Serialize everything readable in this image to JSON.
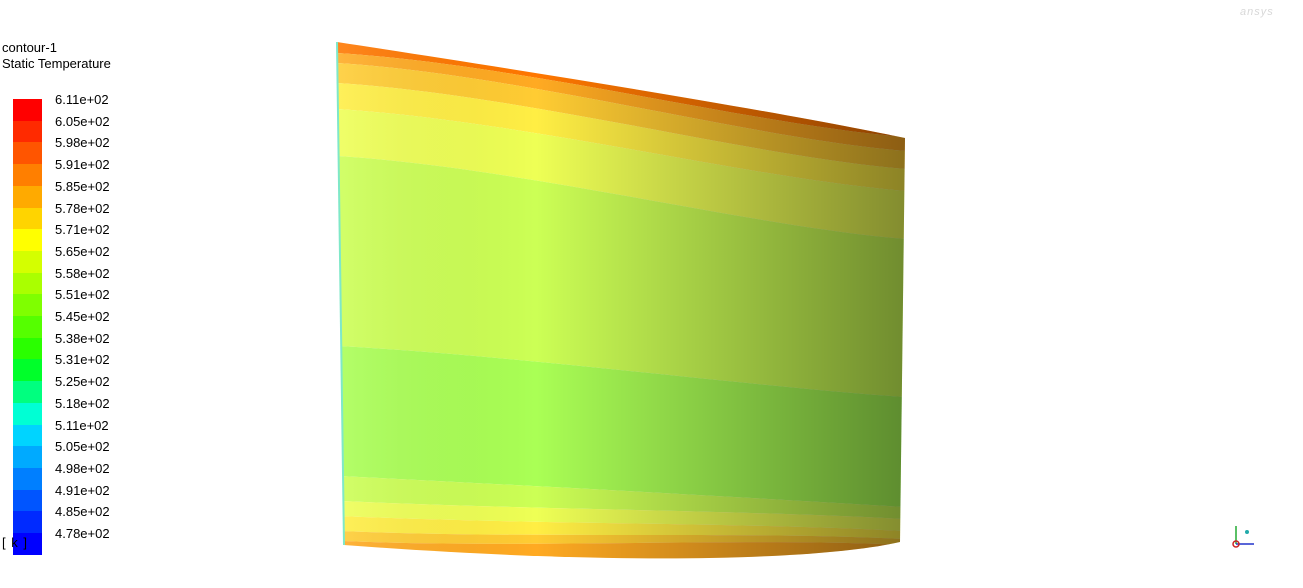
{
  "title": {
    "line1": "contour-1",
    "line2": "Static Temperature"
  },
  "units_label": "[ k ]",
  "colors": {
    "background": "#ffffff"
  },
  "chart_data": {
    "type": "heatmap",
    "title": "contour-1",
    "variable": "Static Temperature",
    "units": "k",
    "colorbar": {
      "position": "left",
      "min": 478,
      "max": 611,
      "tick_labels": [
        "6.11e+02",
        "6.05e+02",
        "5.98e+02",
        "5.91e+02",
        "5.85e+02",
        "5.78e+02",
        "5.71e+02",
        "5.65e+02",
        "5.58e+02",
        "5.51e+02",
        "5.45e+02",
        "5.38e+02",
        "5.31e+02",
        "5.25e+02",
        "5.18e+02",
        "5.11e+02",
        "5.05e+02",
        "4.98e+02",
        "4.91e+02",
        "4.85e+02",
        "4.78e+02"
      ],
      "colors": [
        "#ff0000",
        "#ff2a00",
        "#ff5500",
        "#ff7f00",
        "#ffaa00",
        "#ffd400",
        "#ffff00",
        "#d4ff00",
        "#aaff00",
        "#7fff00",
        "#55ff00",
        "#2aff00",
        "#00ff2a",
        "#00ff7f",
        "#00ffd4",
        "#00d4ff",
        "#00aaff",
        "#007fff",
        "#0055ff",
        "#002aff",
        "#0000ff"
      ]
    },
    "contour_bands_top_to_bottom": [
      {
        "range": "5.91e+02 to 6.05e+02",
        "color": "#ff7700"
      },
      {
        "range": "5.85e+02 to 5.91e+02",
        "color": "#ffaa22"
      },
      {
        "range": "5.78e+02 to 5.85e+02",
        "color": "#ffcc33"
      },
      {
        "range": "5.71e+02 to 5.78e+02",
        "color": "#ffee44"
      },
      {
        "range": "5.65e+02 to 5.71e+02",
        "color": "#eeff55"
      },
      {
        "range": "5.58e+02 to 5.65e+02",
        "color": "#ccff55"
      },
      {
        "range": "5.51e+02 to 5.58e+02",
        "color": "#aaff55"
      },
      {
        "range": "5.58e+02 to 5.65e+02",
        "color": "#ccff55"
      },
      {
        "range": "5.65e+02 to 5.71e+02",
        "color": "#eeff55"
      },
      {
        "range": "5.71e+02 to 5.78e+02",
        "color": "#ffee44"
      },
      {
        "range": "5.78e+02 to 5.85e+02",
        "color": "#ffcc33"
      },
      {
        "range": "5.85e+02 to 5.91e+02",
        "color": "#ffaa22"
      }
    ]
  }
}
